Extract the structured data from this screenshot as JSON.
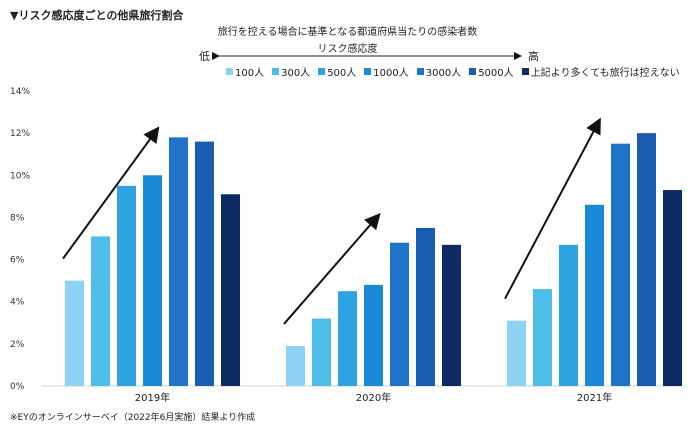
{
  "header": {
    "title": "▼リスク感応度ごとの他県旅行割合",
    "subtitle": "旅行を控える場合に基準となる都道府県当たりの感染者数",
    "risk_label": "リスク感応度",
    "risk_low": "低",
    "risk_high": "高"
  },
  "footnote": "※EYのオンラインサーベイ（2022年6月実施）結果より作成",
  "chart_data": {
    "type": "bar",
    "categories": [
      "2019年",
      "2020年",
      "2021年"
    ],
    "y_ticks": [
      "0%",
      "2%",
      "4%",
      "6%",
      "8%",
      "10%",
      "12%",
      "14%"
    ],
    "ylim": [
      0,
      14
    ],
    "unit": "%",
    "grid": false,
    "legend_position": "top",
    "series": [
      {
        "name": "100人",
        "color": "#8fd3f4",
        "values": [
          5.0,
          1.9,
          3.1
        ]
      },
      {
        "name": "300人",
        "color": "#4fbde9",
        "values": [
          7.1,
          3.2,
          4.6
        ]
      },
      {
        "name": "500人",
        "color": "#2ea3e2",
        "values": [
          9.5,
          4.5,
          6.7
        ]
      },
      {
        "name": "1000人",
        "color": "#1a8ad8",
        "values": [
          10.0,
          4.8,
          8.6
        ]
      },
      {
        "name": "3000人",
        "color": "#1f74c9",
        "values": [
          11.8,
          6.8,
          11.5
        ]
      },
      {
        "name": "5000人",
        "color": "#1a5cb0",
        "values": [
          11.6,
          7.5,
          12.0
        ]
      },
      {
        "name": "上記より多くても旅行は控えない",
        "color": "#0d2a62",
        "values": [
          9.1,
          6.7,
          9.3
        ]
      }
    ]
  }
}
